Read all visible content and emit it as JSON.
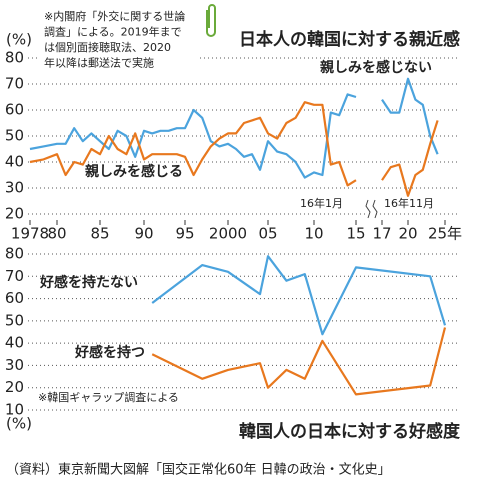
{
  "chart_data": [
    {
      "type": "line",
      "title": "日本人の韓国に対する親近感",
      "y_label": "(%)",
      "note": [
        "※内閣府「外交に関する世論",
        "調査」による。2019年まで",
        "は個別面接聴取法、2020",
        "年以降は郵送法で実施"
      ],
      "annotations": [
        "16年1月",
        "16年11月"
      ],
      "x": [
        1978,
        1979,
        1980,
        1981,
        1982,
        1983,
        1984,
        1985,
        1986,
        1987,
        1988,
        1989,
        1990,
        1991,
        1992,
        1993,
        1994,
        1995,
        1996,
        1997,
        1998,
        1999,
        2000,
        2001,
        2002,
        2003,
        2004,
        2005,
        2006,
        2007,
        2008,
        2009,
        2010,
        2011,
        2012,
        2013,
        2014,
        2015,
        2016,
        2017,
        2018,
        2019,
        2020,
        2021,
        2022,
        2023,
        2024
      ],
      "series": [
        {
          "name": "親しみを感じない",
          "color": "#4ba3dd",
          "values": [
            45,
            46,
            47,
            47,
            53,
            48,
            51,
            48,
            45,
            52,
            50,
            42,
            52,
            51,
            52,
            52,
            53,
            53,
            60,
            57,
            48,
            46,
            47,
            45,
            42,
            43,
            37,
            48,
            44,
            43,
            40,
            34,
            36,
            35,
            59,
            58,
            66,
            65,
            null,
            64,
            59,
            59,
            72,
            64,
            62,
            50,
            43
          ]
        },
        {
          "name": "親しみを感じる",
          "color": "#e8781e",
          "values": [
            40,
            41,
            43,
            35,
            40,
            39,
            45,
            43,
            50,
            45,
            43,
            51,
            41,
            43,
            43,
            43,
            43,
            42,
            35,
            41,
            46,
            49,
            51,
            51,
            55,
            56,
            57,
            51,
            49,
            55,
            57,
            63,
            62,
            62,
            39,
            40,
            31,
            33,
            null,
            33,
            38,
            39,
            27,
            35,
            37,
            47,
            56
          ]
        }
      ],
      "xlim": [
        1978,
        2025
      ],
      "xticks": [
        1978,
        {
          "value": 1980,
          "label": "80"
        },
        {
          "value": 1985,
          "label": "85"
        },
        {
          "value": 1990,
          "label": "90"
        },
        {
          "value": 1995,
          "label": "95"
        },
        2000,
        {
          "value": 2005,
          "label": "05"
        },
        {
          "value": 2010,
          "label": "10"
        },
        {
          "value": 2015,
          "label": "15"
        },
        {
          "value": 2017,
          "label": "17"
        },
        {
          "value": 2020,
          "label": "20"
        },
        {
          "value": 2025,
          "label": "25年"
        }
      ],
      "ylim": [
        20,
        80
      ],
      "yticks": [
        20,
        30,
        40,
        50,
        60,
        70,
        80
      ],
      "grid": true
    },
    {
      "type": "line",
      "title": "韓国人の日本に対する好感度",
      "y_label": "(%)",
      "note": [
        "※韓国ギャラップ調査による"
      ],
      "x": [
        1991,
        1997,
        2000,
        2004,
        2005,
        2007,
        2009,
        2011,
        2015,
        2023,
        2025
      ],
      "series": [
        {
          "name": "好感を持たない",
          "color": "#4ba3dd",
          "values": [
            58,
            75,
            72,
            62,
            79,
            68,
            71,
            44,
            74,
            70,
            48
          ]
        },
        {
          "name": "好感を持つ",
          "color": "#e8781e",
          "values": [
            35,
            24,
            28,
            31,
            20,
            28,
            24,
            41,
            17,
            21,
            47
          ]
        }
      ],
      "xlim": [
        1978,
        2025
      ],
      "ylim": [
        10,
        80
      ],
      "yticks": [
        10,
        20,
        30,
        40,
        50,
        60,
        70,
        80
      ],
      "grid": true
    }
  ],
  "source": "（資料）東京新聞大図解「国交正常化60年 日韓の政治・文化史」"
}
